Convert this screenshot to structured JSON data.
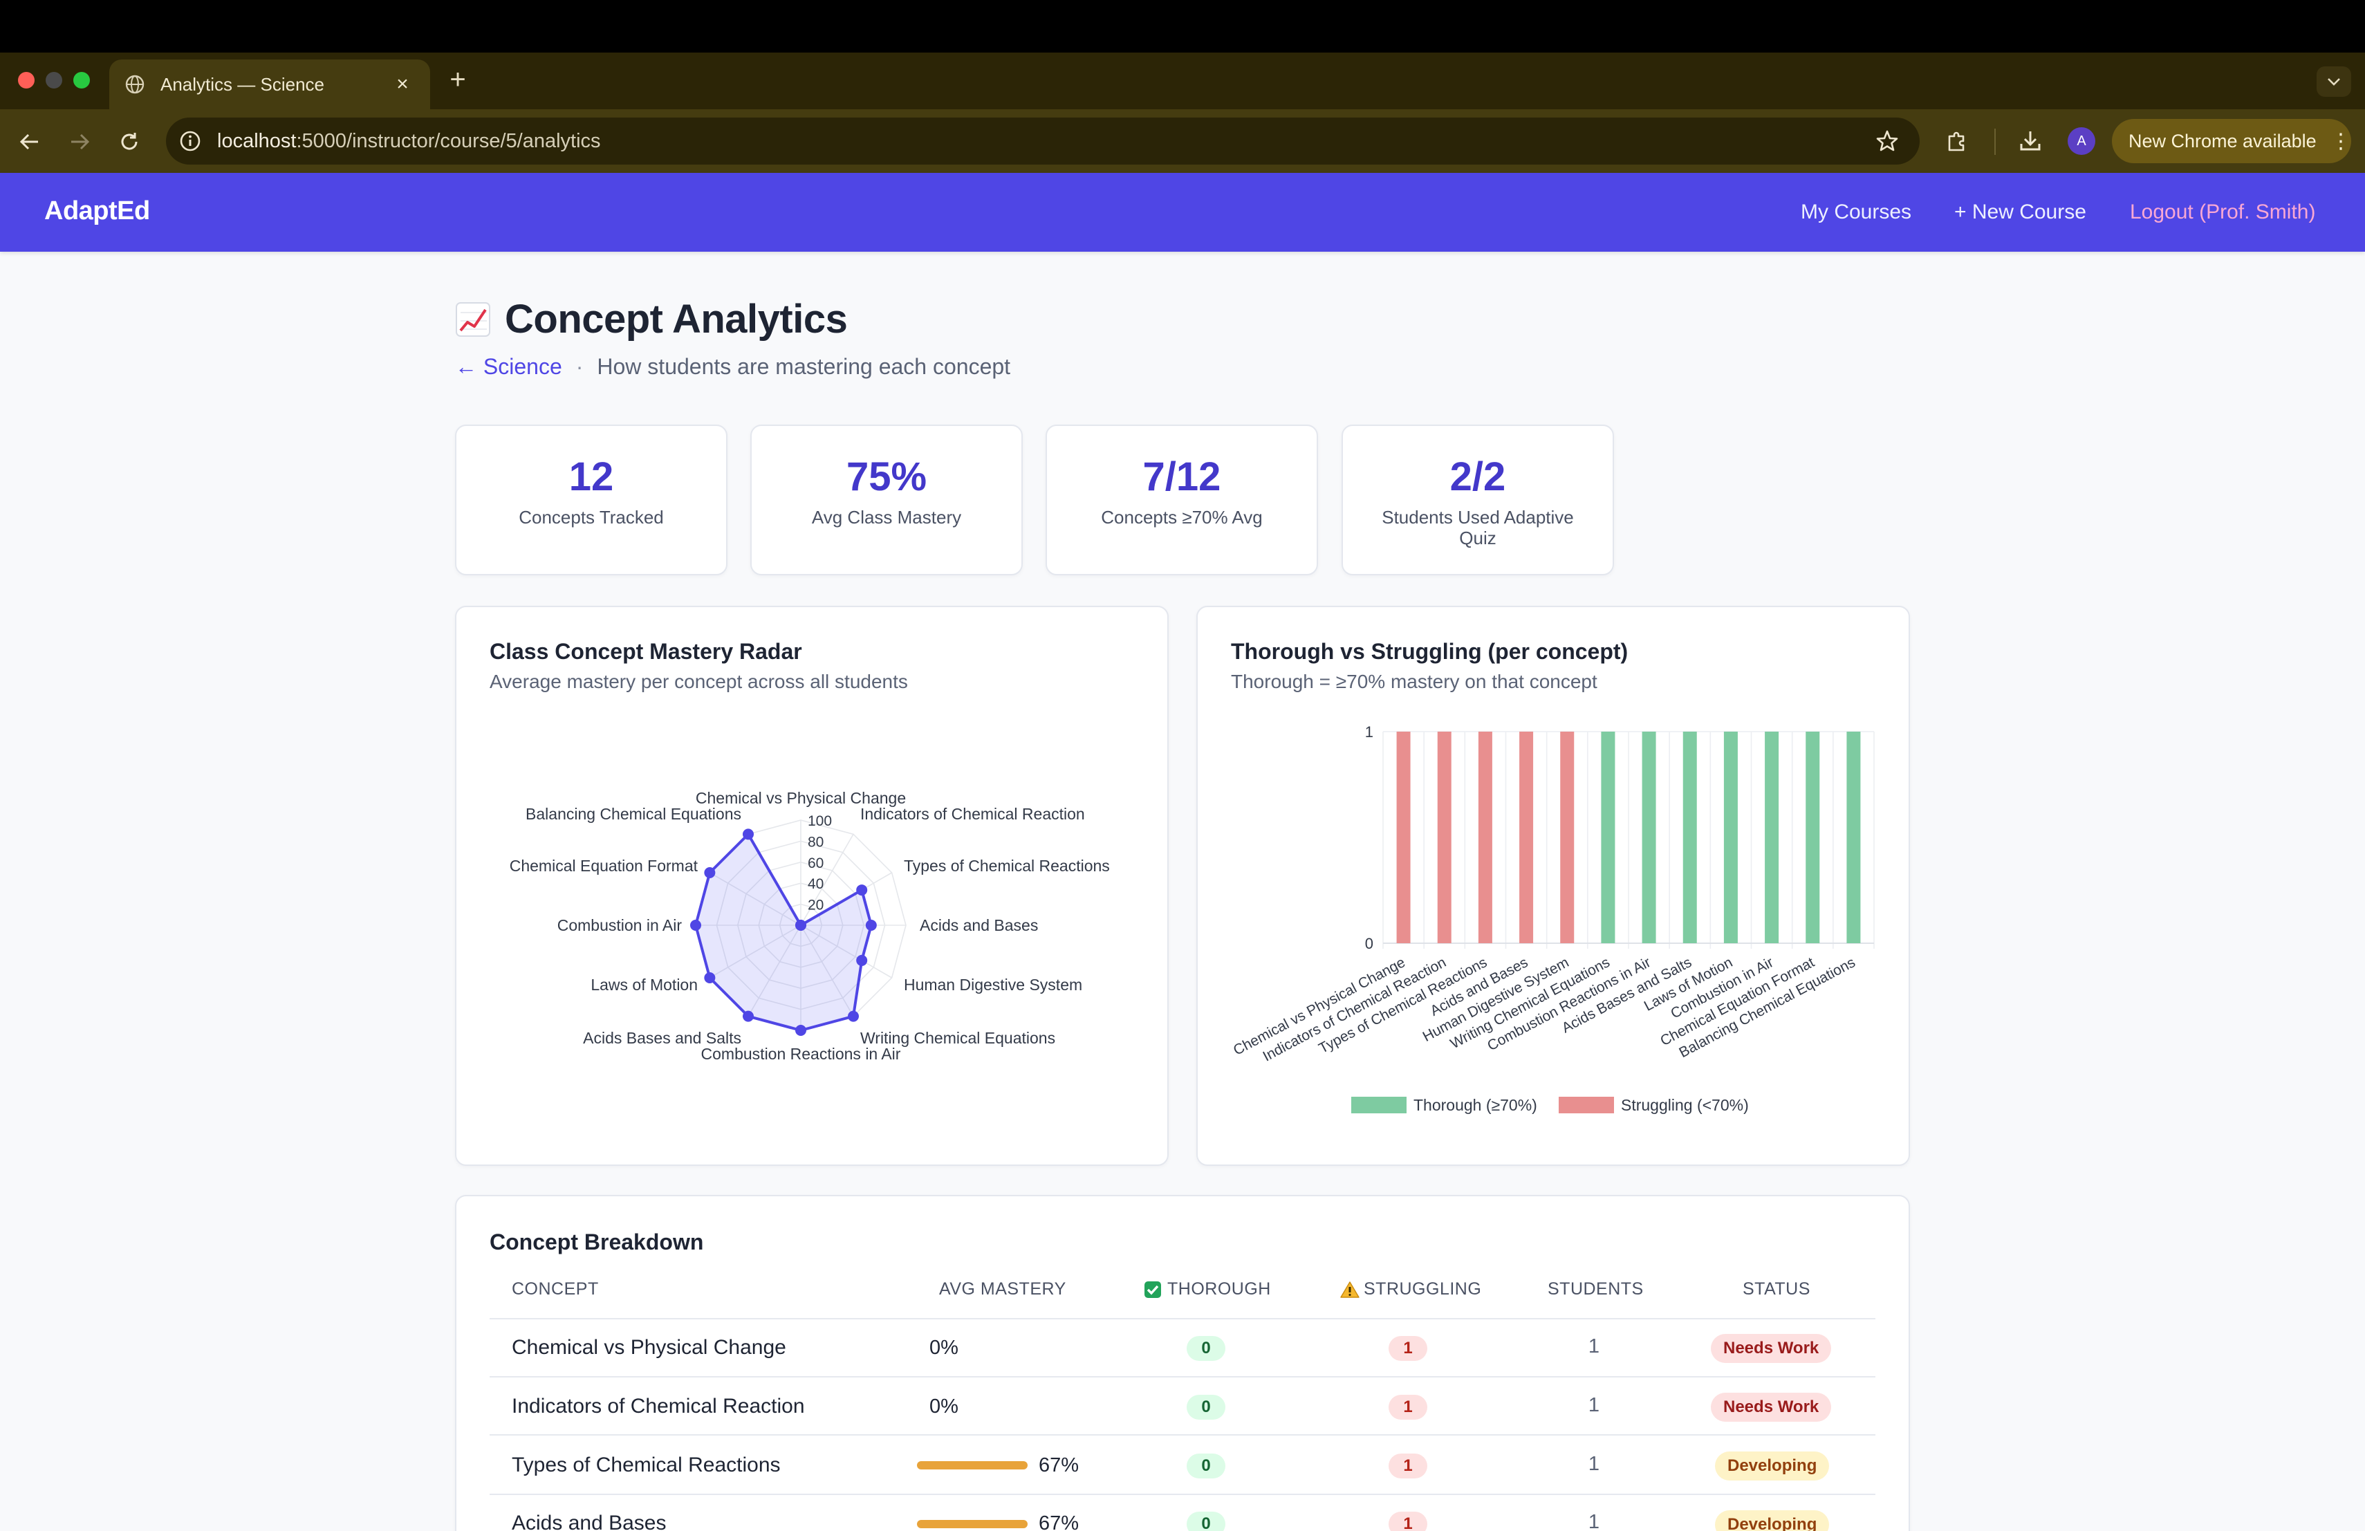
{
  "browser": {
    "tab_title": "Analytics — Science",
    "url_host": "localhost",
    "url_path": ":5000/instructor/course/5/analytics",
    "profile_initial": "A",
    "update_label": "New Chrome available"
  },
  "nav": {
    "brand": "AdaptEd",
    "my_courses": "My Courses",
    "new_course": "+ New Course",
    "logout": "Logout (Prof. Smith)",
    "colors": {
      "nav_bg": "#4f46e5",
      "logout": "#f9a8d4"
    }
  },
  "header": {
    "emoji_icon": "chart-increasing-icon",
    "title": "Concept Analytics",
    "back_link": "← Science",
    "separator": "·",
    "description": "How students are mastering each concept"
  },
  "stats": [
    {
      "value": "12",
      "label": "Concepts Tracked"
    },
    {
      "value": "75%",
      "label": "Avg Class Mastery"
    },
    {
      "value": "7/12",
      "label": "Concepts ≥70% Avg"
    },
    {
      "value": "2/2",
      "label": "Students Used Adaptive Quiz"
    }
  ],
  "radar_panel": {
    "title": "Class Concept Mastery Radar",
    "subtitle": "Average mastery per concept across all students"
  },
  "bar_panel": {
    "title": "Thorough vs Struggling (per concept)",
    "subtitle": "Thorough = ≥70% mastery on that concept"
  },
  "chart_data": [
    {
      "type": "radar",
      "title": "",
      "categories": [
        "Chemical vs Physical Change",
        "Indicators of Chemical Reaction",
        "Types of Chemical Reactions",
        "Acids and Bases",
        "Human Digestive System",
        "Writing Chemical Equations",
        "Combustion Reactions in Air",
        "Acids Bases and Salts",
        "Laws of Motion",
        "Combustion in Air",
        "Chemical Equation Format",
        "Balancing Chemical Equations"
      ],
      "values": [
        0,
        0,
        67,
        67,
        67,
        100,
        100,
        100,
        100,
        100,
        100,
        100
      ],
      "rlim": [
        0,
        100
      ],
      "ticks": [
        20,
        40,
        60,
        80,
        100
      ],
      "colors": {
        "line": "#4f46e5",
        "fill": "rgba(99,102,241,0.16)",
        "grid": "#e5e7eb"
      }
    },
    {
      "type": "bar",
      "title": "",
      "stacked": true,
      "categories": [
        "Chemical vs Physical Change",
        "Indicators of Chemical Reaction",
        "Types of Chemical Reactions",
        "Acids and Bases",
        "Human Digestive System",
        "Writing Chemical Equations",
        "Combustion Reactions in Air",
        "Acids Bases and Salts",
        "Laws of Motion",
        "Combustion in Air",
        "Chemical Equation Format",
        "Balancing Chemical Equations"
      ],
      "series": [
        {
          "name": "Thorough (≥70%)",
          "color": "#7ecba1",
          "values": [
            0,
            0,
            0,
            0,
            0,
            1,
            1,
            1,
            1,
            1,
            1,
            1
          ]
        },
        {
          "name": "Struggling (<70%)",
          "color": "#e88f8f",
          "values": [
            1,
            1,
            1,
            1,
            1,
            0,
            0,
            0,
            0,
            0,
            0,
            0
          ]
        }
      ],
      "ylim": [
        0,
        1
      ],
      "yticks": [
        "0",
        "1"
      ],
      "grid": true,
      "legend": "bottom"
    }
  ],
  "table": {
    "title": "Concept Breakdown",
    "headers": {
      "concept": "Concept",
      "mastery": "Avg Mastery",
      "thorough": "Thorough",
      "struggling": "Struggling",
      "students": "Students",
      "status": "Status"
    },
    "rows": [
      {
        "concept": "Chemical vs Physical Change",
        "mastery": "0%",
        "mastery_value": 0,
        "thorough": "0",
        "struggling": "1",
        "students": "1",
        "status": "Needs Work",
        "status_kind": "needs"
      },
      {
        "concept": "Indicators of Chemical Reaction",
        "mastery": "0%",
        "mastery_value": 0,
        "thorough": "0",
        "struggling": "1",
        "students": "1",
        "status": "Needs Work",
        "status_kind": "needs"
      },
      {
        "concept": "Types of Chemical Reactions",
        "mastery": "67%",
        "mastery_value": 67,
        "thorough": "0",
        "struggling": "1",
        "students": "1",
        "status": "Developing",
        "status_kind": "dev"
      },
      {
        "concept": "Acids and Bases",
        "mastery": "67%",
        "mastery_value": 67,
        "thorough": "0",
        "struggling": "1",
        "students": "1",
        "status": "Developing",
        "status_kind": "dev"
      }
    ]
  }
}
